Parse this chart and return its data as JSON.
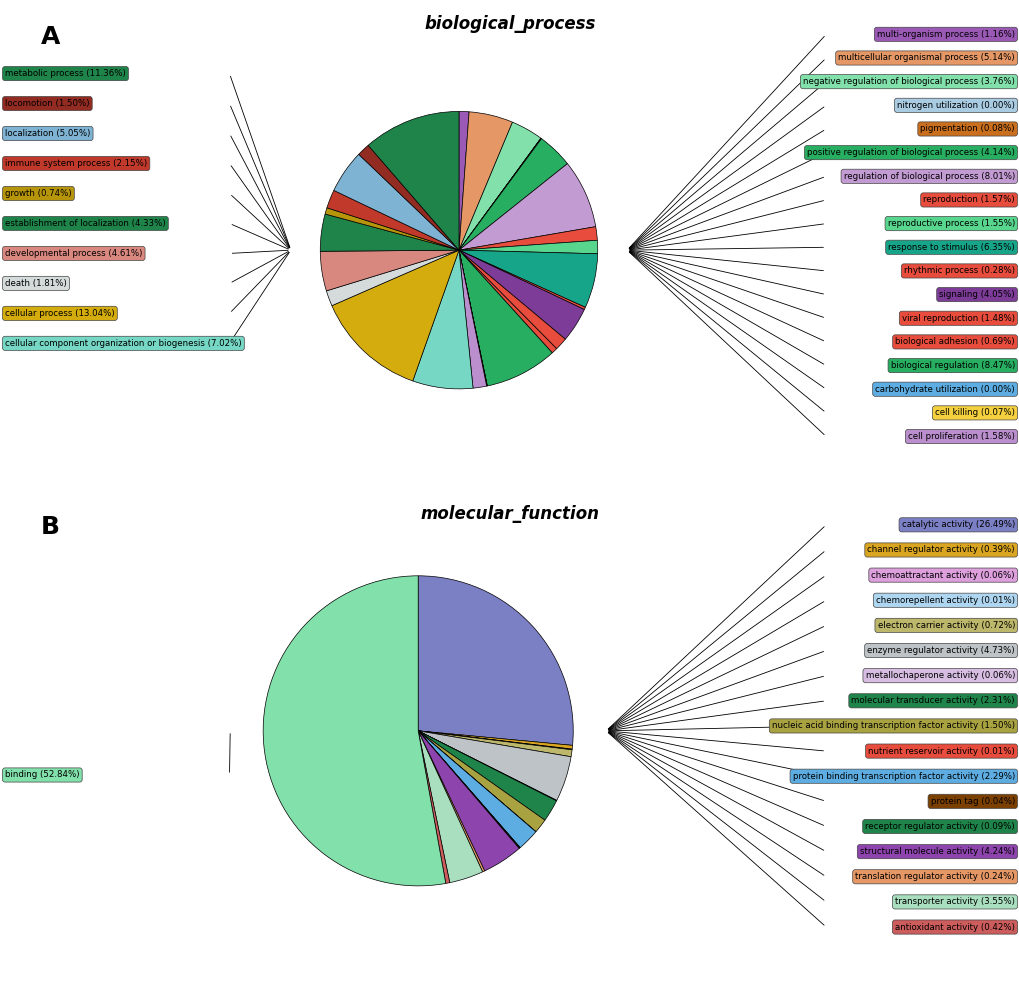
{
  "panel_A": {
    "title": "biological_process",
    "label": "A",
    "right_labels": [
      {
        "name": "multi-organism process (1.16%)",
        "value": 1.16,
        "color": "#9B59B6"
      },
      {
        "name": "multicellular organismal process (5.14%)",
        "value": 5.14,
        "color": "#E59866"
      },
      {
        "name": "negative regulation of biological process (3.76%)",
        "value": 3.76,
        "color": "#82E0AA"
      },
      {
        "name": "nitrogen utilization (0.00%)",
        "value": 0.001,
        "color": "#A9CCE3"
      },
      {
        "name": "pigmentation (0.08%)",
        "value": 0.08,
        "color": "#CA6F1E"
      },
      {
        "name": "positive regulation of biological process (4.14%)",
        "value": 4.14,
        "color": "#27AE60"
      },
      {
        "name": "regulation of biological process (8.01%)",
        "value": 8.01,
        "color": "#C39BD3"
      },
      {
        "name": "reproduction (1.57%)",
        "value": 1.57,
        "color": "#E74C3C"
      },
      {
        "name": "reproductive process (1.55%)",
        "value": 1.55,
        "color": "#58D68D"
      },
      {
        "name": "response to stimulus (6.35%)",
        "value": 6.35,
        "color": "#17A589"
      },
      {
        "name": "rhythmic process (0.28%)",
        "value": 0.28,
        "color": "#E74C3C"
      },
      {
        "name": "signaling (4.05%)",
        "value": 4.05,
        "color": "#7D3C98"
      },
      {
        "name": "viral reproduction (1.48%)",
        "value": 1.48,
        "color": "#E74C3C"
      },
      {
        "name": "biological adhesion (0.69%)",
        "value": 0.69,
        "color": "#E74C3C"
      },
      {
        "name": "biological regulation (8.47%)",
        "value": 8.47,
        "color": "#27AE60"
      },
      {
        "name": "carbohydrate utilization (0.00%)",
        "value": 0.001,
        "color": "#5DADE2"
      },
      {
        "name": "cell killing (0.07%)",
        "value": 0.07,
        "color": "#F4D03F"
      },
      {
        "name": "cell proliferation (1.58%)",
        "value": 1.58,
        "color": "#BB8FCE"
      }
    ],
    "left_labels": [
      {
        "name": "metabolic process (11.36%)",
        "value": 11.36,
        "color": "#1E8449"
      },
      {
        "name": "locomotion (1.50%)",
        "value": 1.5,
        "color": "#922B21"
      },
      {
        "name": "localization (5.05%)",
        "value": 5.05,
        "color": "#7FB3D3"
      },
      {
        "name": "immune system process (2.15%)",
        "value": 2.15,
        "color": "#C0392B"
      },
      {
        "name": "growth (0.74%)",
        "value": 0.74,
        "color": "#B7950B"
      },
      {
        "name": "establishment of localization (4.33%)",
        "value": 4.33,
        "color": "#1E8449"
      },
      {
        "name": "developmental process (4.61%)",
        "value": 4.61,
        "color": "#D98880"
      },
      {
        "name": "death (1.81%)",
        "value": 1.81,
        "color": "#D5DBDB"
      },
      {
        "name": "cellular process (13.04%)",
        "value": 13.04,
        "color": "#D4AC0D"
      },
      {
        "name": "cellular component organization or biogenesis (7.02%)",
        "value": 7.02,
        "color": "#76D7C4"
      }
    ]
  },
  "panel_B": {
    "title": "molecular_function",
    "label": "B",
    "right_labels": [
      {
        "name": "catalytic activity (26.49%)",
        "value": 26.49,
        "color": "#7B7FC4"
      },
      {
        "name": "channel regulator activity (0.39%)",
        "value": 0.39,
        "color": "#DAA520"
      },
      {
        "name": "chemoattractant activity (0.06%)",
        "value": 0.06,
        "color": "#DDA0DD"
      },
      {
        "name": "chemorepellent activity (0.01%)",
        "value": 0.01,
        "color": "#AED6F1"
      },
      {
        "name": "electron carrier activity (0.72%)",
        "value": 0.72,
        "color": "#BDB76B"
      },
      {
        "name": "enzyme regulator activity (4.73%)",
        "value": 4.73,
        "color": "#BDC3C7"
      },
      {
        "name": "metallochaperone activity (0.06%)",
        "value": 0.06,
        "color": "#D7BDE2"
      },
      {
        "name": "molecular transducer activity (2.31%)",
        "value": 2.31,
        "color": "#1E8449"
      },
      {
        "name": "nucleic acid binding transcription factor activity (1.50%)",
        "value": 1.5,
        "color": "#A9A241"
      },
      {
        "name": "nutrient reservoir activity (0.01%)",
        "value": 0.01,
        "color": "#E74C3C"
      },
      {
        "name": "protein binding transcription factor activity (2.29%)",
        "value": 2.29,
        "color": "#5DADE2"
      },
      {
        "name": "protein tag (0.04%)",
        "value": 0.04,
        "color": "#7B3F00"
      },
      {
        "name": "receptor regulator activity (0.09%)",
        "value": 0.09,
        "color": "#1E8449"
      },
      {
        "name": "structural molecule activity (4.24%)",
        "value": 4.24,
        "color": "#8E44AD"
      },
      {
        "name": "translation regulator activity (0.24%)",
        "value": 0.24,
        "color": "#E59866"
      },
      {
        "name": "transporter activity (3.55%)",
        "value": 3.55,
        "color": "#A9DFBF"
      },
      {
        "name": "antioxidant activity (0.42%)",
        "value": 0.42,
        "color": "#CD5C5C"
      }
    ],
    "left_labels": [
      {
        "name": "binding (52.84%)",
        "value": 52.84,
        "color": "#82E0AA"
      }
    ]
  }
}
